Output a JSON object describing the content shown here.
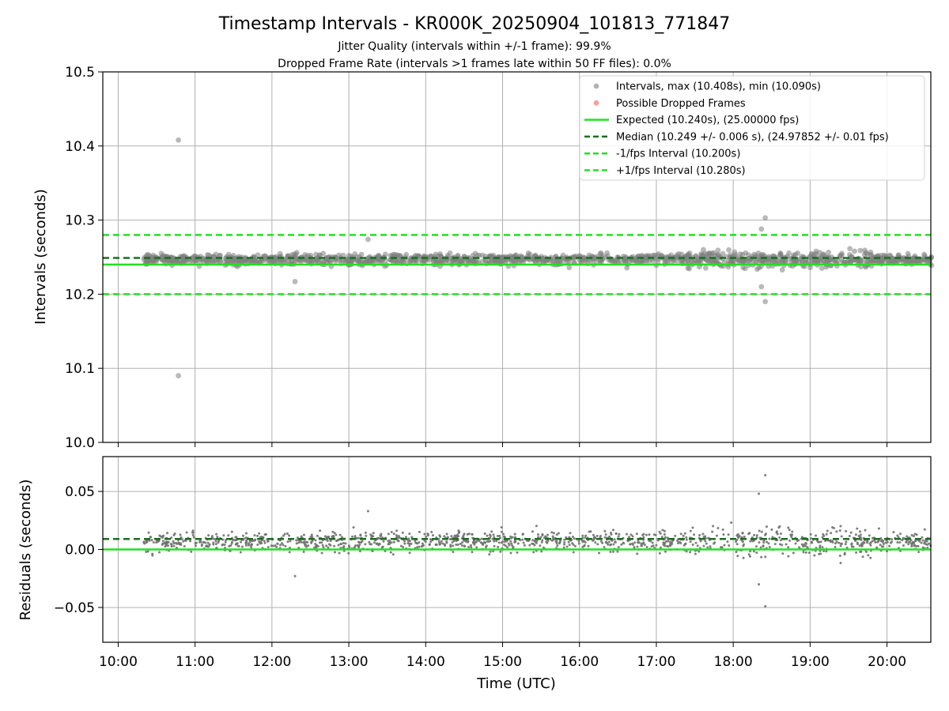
{
  "figure": {
    "title": "Timestamp Intervals - KR000K_20250904_101813_771847",
    "subtitle_jitter": "Jitter Quality (intervals within +/-1 frame): 99.9%",
    "subtitle_dropped": "Dropped Frame Rate (intervals >1 frames late within 50 FF files): 0.0%"
  },
  "chart_data": [
    {
      "type": "scatter",
      "panel": "top",
      "title": "",
      "xlabel": "",
      "ylabel": "Intervals (seconds)",
      "xlim": [
        9.8,
        20.57
      ],
      "ylim": [
        10.0,
        10.5
      ],
      "yticks": [
        "10.0",
        "10.1",
        "10.2",
        "10.3",
        "10.4",
        "10.5"
      ],
      "ytick_values": [
        10.0,
        10.1,
        10.2,
        10.3,
        10.4,
        10.5
      ],
      "grid": true,
      "legend_position": "top-right",
      "series": [
        {
          "name": "Intervals, max (10.408s), min (10.090s)",
          "kind": "scatter",
          "color": "#808080",
          "x_range": [
            "10:20",
            "20:35"
          ],
          "y_center": 10.247,
          "y_spread": 0.006,
          "notable_points": [
            {
              "x": "10:47",
              "y": 10.408
            },
            {
              "x": "10:47",
              "y": 10.09
            },
            {
              "x": "13:15",
              "y": 10.274
            },
            {
              "x": "18:22",
              "y": 10.288
            },
            {
              "x": "18:25",
              "y": 10.303
            },
            {
              "x": "18:25",
              "y": 10.19
            },
            {
              "x": "12:18",
              "y": 10.217
            },
            {
              "x": "18:22",
              "y": 10.21
            }
          ]
        },
        {
          "name": "Possible Dropped Frames",
          "kind": "scatter",
          "color": "#f06060",
          "values": []
        },
        {
          "name": "Expected (10.240s), (25.00000 fps)",
          "kind": "hline",
          "value": 10.24,
          "color": "#22e022",
          "style": "solid"
        },
        {
          "name": "Median (10.249 +/- 0.006 s), (24.97852 +/- 0.01 fps)",
          "kind": "hline",
          "value": 10.249,
          "color": "#1a6e1a",
          "style": "dashed"
        },
        {
          "name": "-1/fps Interval (10.200s)",
          "kind": "hline",
          "value": 10.2,
          "color": "#22e022",
          "style": "dashed"
        },
        {
          "name": "+1/fps Interval (10.280s)",
          "kind": "hline",
          "value": 10.28,
          "color": "#22e022",
          "style": "dashed"
        }
      ]
    },
    {
      "type": "scatter",
      "panel": "bottom",
      "title": "",
      "xlabel": "Time (UTC)",
      "ylabel": "Residuals (seconds)",
      "xlim": [
        9.8,
        20.57
      ],
      "ylim": [
        -0.08,
        0.08
      ],
      "xticks": [
        "10:00",
        "11:00",
        "12:00",
        "13:00",
        "14:00",
        "15:00",
        "16:00",
        "17:00",
        "18:00",
        "19:00",
        "20:00"
      ],
      "xtick_values": [
        10,
        11,
        12,
        13,
        14,
        15,
        16,
        17,
        18,
        19,
        20
      ],
      "yticks": [
        "−0.05",
        "0.00",
        "0.05"
      ],
      "ytick_values": [
        -0.05,
        0.0,
        0.05
      ],
      "grid": true,
      "series": [
        {
          "kind": "scatter",
          "color": "#707070",
          "x_range": [
            "10:20",
            "20:35"
          ],
          "y_center": 0.007,
          "y_spread": 0.007,
          "notable_points": [
            {
              "x": "18:25",
              "y": 0.064
            },
            {
              "x": "18:20",
              "y": 0.048
            },
            {
              "x": "18:25",
              "y": -0.049
            },
            {
              "x": "18:20",
              "y": -0.03
            },
            {
              "x": "13:15",
              "y": 0.033
            },
            {
              "x": "12:18",
              "y": -0.023
            }
          ]
        },
        {
          "kind": "hline",
          "value": 0.0,
          "color": "#22e022",
          "style": "solid"
        },
        {
          "kind": "hline",
          "value": 0.009,
          "color": "#1a6e1a",
          "style": "dashed"
        }
      ]
    }
  ]
}
